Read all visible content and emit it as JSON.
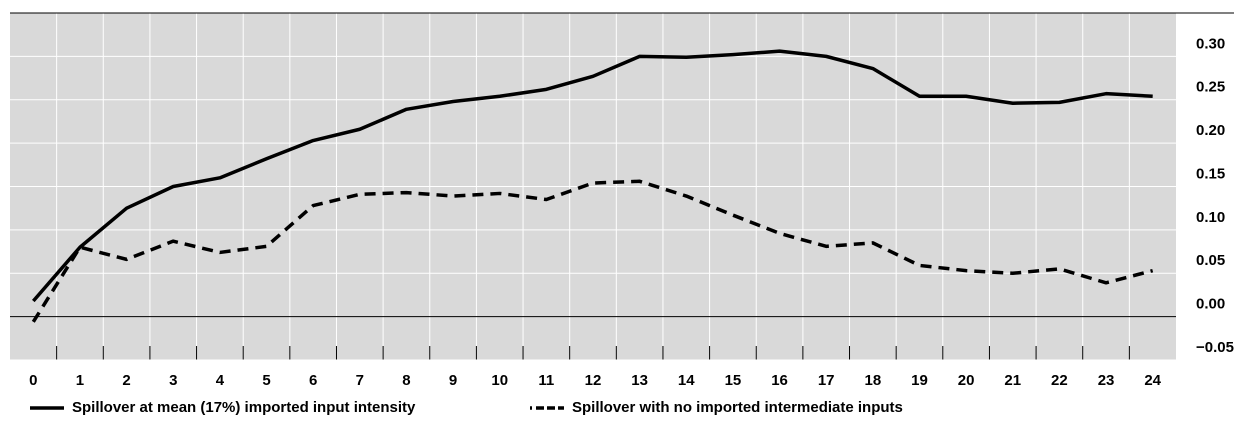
{
  "chart_data": {
    "type": "line",
    "categories": [
      "0",
      "1",
      "2",
      "3",
      "4",
      "5",
      "6",
      "7",
      "8",
      "9",
      "10",
      "11",
      "12",
      "13",
      "14",
      "15",
      "16",
      "17",
      "18",
      "19",
      "20",
      "21",
      "22",
      "23",
      "24"
    ],
    "series": [
      {
        "name": "Spillover at mean (17%) imported input intensity",
        "color": "#000000",
        "style": "solid",
        "values": [
          0.018,
          0.08,
          0.125,
          0.15,
          0.16,
          0.182,
          0.203,
          0.216,
          0.239,
          0.248,
          0.254,
          0.262,
          0.277,
          0.3,
          0.299,
          0.302,
          0.306,
          0.3,
          0.286,
          0.254,
          0.254,
          0.246,
          0.247,
          0.257,
          0.254
        ]
      },
      {
        "name": "Spillover with no imported intermediate inputs",
        "color": "#000000",
        "style": "dashed",
        "values": [
          -0.006,
          0.08,
          0.066,
          0.087,
          0.074,
          0.081,
          0.128,
          0.141,
          0.143,
          0.139,
          0.142,
          0.135,
          0.154,
          0.156,
          0.139,
          0.117,
          0.096,
          0.081,
          0.085,
          0.059,
          0.053,
          0.05,
          0.055,
          0.039,
          0.053
        ]
      }
    ],
    "ylim": [
      -0.05,
      0.35
    ],
    "yticks": [
      {
        "value": -0.05,
        "label": "−0.05"
      },
      {
        "value": 0,
        "label": "0.00"
      },
      {
        "value": 0.05,
        "label": "0.05"
      },
      {
        "value": 0.1,
        "label": "0.10"
      },
      {
        "value": 0.15,
        "label": "0.15"
      },
      {
        "value": 0.2,
        "label": "0.20"
      },
      {
        "value": 0.25,
        "label": "0.25"
      },
      {
        "value": 0.3,
        "label": "0.30"
      }
    ],
    "grid": true,
    "legend": "bottom"
  }
}
